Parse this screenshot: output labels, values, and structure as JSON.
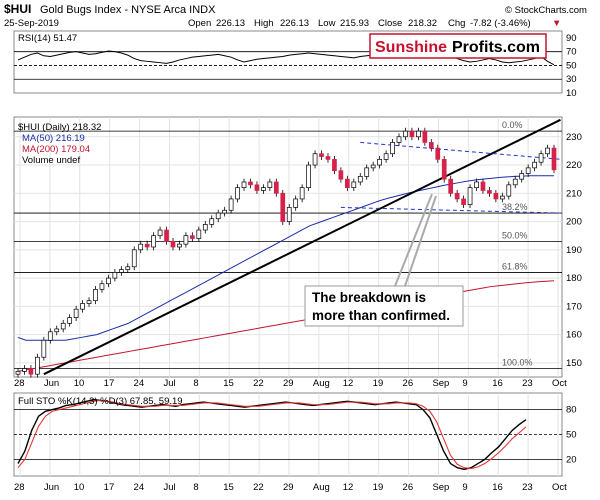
{
  "header": {
    "symbol": "$HUI",
    "name": "Gold Bugs Index - NYSE Arca INDX",
    "date": "25-Sep-2019",
    "open_label": "Open",
    "open": "226.13",
    "high_label": "High",
    "high": "226.13",
    "low_label": "Low",
    "low": "215.93",
    "close_label": "Close",
    "close": "218.32",
    "chg_label": "Chg",
    "chg": "-7.82 (-3.46%)",
    "chg_arrow": "▼",
    "copyright": "© StockCharts.com"
  },
  "colors": {
    "up_candle": "#ffffff",
    "down_candle": "#d6224a",
    "ma50": "#1a2ea8",
    "ma200": "#c0152f",
    "rsi_fill": "#2e7d32",
    "stoch_k": "#000000",
    "stoch_d": "#e53935",
    "channel": "#2233cc",
    "watermark_red": "#c8102e"
  },
  "watermark": {
    "part1": "Sunshine",
    "part2": "Profits.com"
  },
  "callout": {
    "line1": "The breakdown is",
    "line2": "more than confirmed."
  },
  "chart_data": [
    {
      "type": "line",
      "name": "RSI(14)",
      "label": "RSI(14) 51.47",
      "ylim": [
        10,
        100
      ],
      "yticks": [
        10,
        30,
        50,
        70,
        90
      ],
      "ref_lines": [
        30,
        50,
        70
      ],
      "values": [
        58,
        62,
        66,
        68,
        64,
        63,
        65,
        67,
        69,
        70,
        68,
        66,
        67,
        69,
        71,
        70,
        68,
        65,
        60,
        57,
        56,
        55,
        54,
        53,
        55,
        58,
        60,
        62,
        63,
        64,
        65,
        66,
        64,
        62,
        58,
        55,
        57,
        59,
        60,
        61,
        62,
        63,
        65,
        66,
        67,
        68,
        67,
        66,
        65,
        64,
        63,
        62,
        61,
        63,
        64,
        65,
        66,
        67,
        68,
        69,
        70,
        71,
        70,
        69,
        68,
        67,
        66,
        65,
        60,
        57,
        55,
        56,
        58,
        60,
        58,
        55,
        54,
        55,
        56,
        58,
        60,
        63,
        56,
        51
      ]
    },
    {
      "type": "candlestick",
      "name": "$HUI (Daily)",
      "label": "$HUI (Daily) 218.32",
      "legend": [
        {
          "name": "MA(50)",
          "text": "MA(50) 216.19"
        },
        {
          "name": "MA(200)",
          "text": "MA(200) 179.04"
        },
        {
          "name": "Volume",
          "text": "Volume undef"
        }
      ],
      "ylim": [
        145,
        237
      ],
      "yticks": [
        150,
        160,
        170,
        180,
        190,
        200,
        210,
        220,
        230
      ],
      "x_labels": [
        "28",
        "Jun",
        "10",
        "17",
        "24",
        "Jul",
        "8",
        "15",
        "22",
        "29",
        "Aug",
        "12",
        "19",
        "26",
        "Sep",
        "9",
        "16",
        "23",
        "Oct"
      ],
      "closes": [
        147,
        148,
        146,
        152,
        158,
        161,
        162,
        164,
        166,
        169,
        171,
        172,
        176,
        178,
        180,
        182,
        183,
        184,
        190,
        192,
        191,
        195,
        197,
        193,
        191,
        192,
        195,
        194,
        197,
        199,
        201,
        203,
        204,
        208,
        212,
        214,
        213,
        211,
        212,
        214,
        210,
        200,
        205,
        208,
        212,
        220,
        224,
        223,
        222,
        218,
        215,
        212,
        214,
        216,
        219,
        220,
        222,
        224,
        228,
        230,
        232,
        230,
        232,
        228,
        226,
        222,
        215,
        210,
        208,
        206,
        212,
        214,
        211,
        210,
        208,
        209,
        213,
        215,
        217,
        219,
        221,
        224,
        226,
        218.32
      ],
      "ma50": [
        159,
        158,
        158,
        158,
        158,
        158,
        158,
        158.5,
        159,
        159.5,
        160,
        161,
        162,
        163,
        164,
        165.5,
        167,
        168.5,
        170,
        171.5,
        173,
        174.5,
        176,
        177.5,
        179,
        180.5,
        182,
        183.5,
        185,
        186.5,
        188,
        189.5,
        191,
        192.5,
        194,
        195.5,
        197,
        198.5,
        199.5,
        200.5,
        201.5,
        202.5,
        203.5,
        204.5,
        205.5,
        206.5,
        207.5,
        208.3,
        209,
        209.7,
        210.4,
        211,
        211.6,
        212.2,
        212.8,
        213.3,
        213.8,
        214.3,
        214.7,
        215,
        215.3,
        215.6,
        215.8,
        216,
        216.1,
        216.2,
        216.2,
        216.2,
        216.19
      ],
      "ma200": [
        147,
        147.5,
        148,
        148.5,
        149,
        149.5,
        150,
        150.5,
        151,
        151.5,
        152,
        152.5,
        153,
        153.5,
        154,
        154.5,
        155,
        155.5,
        156,
        156.5,
        157,
        157.5,
        158,
        158.5,
        159,
        159.5,
        160,
        160.5,
        161,
        161.5,
        162,
        162.5,
        163,
        163.5,
        164,
        164.5,
        165,
        165.5,
        166,
        166.5,
        167,
        167.5,
        168,
        168.5,
        169,
        169.5,
        170,
        170.5,
        171,
        171.5,
        172,
        172.5,
        173,
        173.5,
        174,
        174.5,
        175,
        175.5,
        176,
        176.5,
        177,
        177.3,
        177.6,
        177.9,
        178.2,
        178.5,
        178.7,
        178.9,
        179.04
      ],
      "fib_levels": [
        {
          "label": "0.0%",
          "value": 232
        },
        {
          "label": "38.2%",
          "value": 203
        },
        {
          "label": "50.0%",
          "value": 193
        },
        {
          "label": "61.8%",
          "value": 182
        },
        {
          "label": "100.0%",
          "value": 148
        }
      ],
      "trendline": [
        {
          "x": 4,
          "y": 146
        },
        {
          "x": 84,
          "y": 236
        }
      ],
      "channel_upper": [
        {
          "x": 53,
          "y": 228
        },
        {
          "x": 101,
          "y": 222
        }
      ],
      "channel_lower": [
        {
          "x": 50,
          "y": 205
        },
        {
          "x": 101,
          "y": 203
        }
      ]
    },
    {
      "type": "line",
      "name": "Full STO %K(14,3) %D(3)",
      "label": "Full STO %K(14,3) %D(3) 67.85, 59.19",
      "ylim": [
        0,
        100
      ],
      "yticks": [
        20,
        50,
        80
      ],
      "ref_lines": [
        20,
        50,
        80
      ],
      "series": [
        {
          "name": "%K",
          "values": [
            15,
            30,
            55,
            72,
            78,
            80,
            82,
            85,
            86,
            88,
            90,
            92,
            91,
            90,
            88,
            86,
            85,
            84,
            83,
            84,
            85,
            86,
            85,
            84,
            86,
            87,
            88,
            89,
            88,
            87,
            86,
            85,
            84,
            83,
            84,
            85,
            86,
            87,
            88,
            89,
            88,
            87,
            86,
            85,
            86,
            87,
            88,
            89,
            90,
            89,
            88,
            87,
            86,
            87,
            88,
            89,
            88,
            87,
            86,
            80,
            70,
            50,
            30,
            15,
            10,
            8,
            10,
            15,
            20,
            28,
            35,
            45,
            55,
            62,
            67.85
          ]
        },
        {
          "name": "%D",
          "values": [
            10,
            20,
            40,
            60,
            72,
            78,
            80,
            82,
            84,
            86,
            88,
            90,
            91,
            90,
            89,
            87,
            86,
            85,
            84,
            84,
            84,
            85,
            85,
            85,
            85,
            86,
            87,
            88,
            88,
            88,
            87,
            86,
            85,
            84,
            84,
            84,
            85,
            86,
            87,
            88,
            88,
            88,
            87,
            86,
            86,
            86,
            87,
            88,
            89,
            89,
            89,
            88,
            87,
            87,
            87,
            88,
            88,
            88,
            87,
            84,
            78,
            65,
            45,
            25,
            14,
            10,
            9,
            11,
            15,
            21,
            28,
            36,
            45,
            52,
            59.19
          ]
        }
      ]
    }
  ]
}
